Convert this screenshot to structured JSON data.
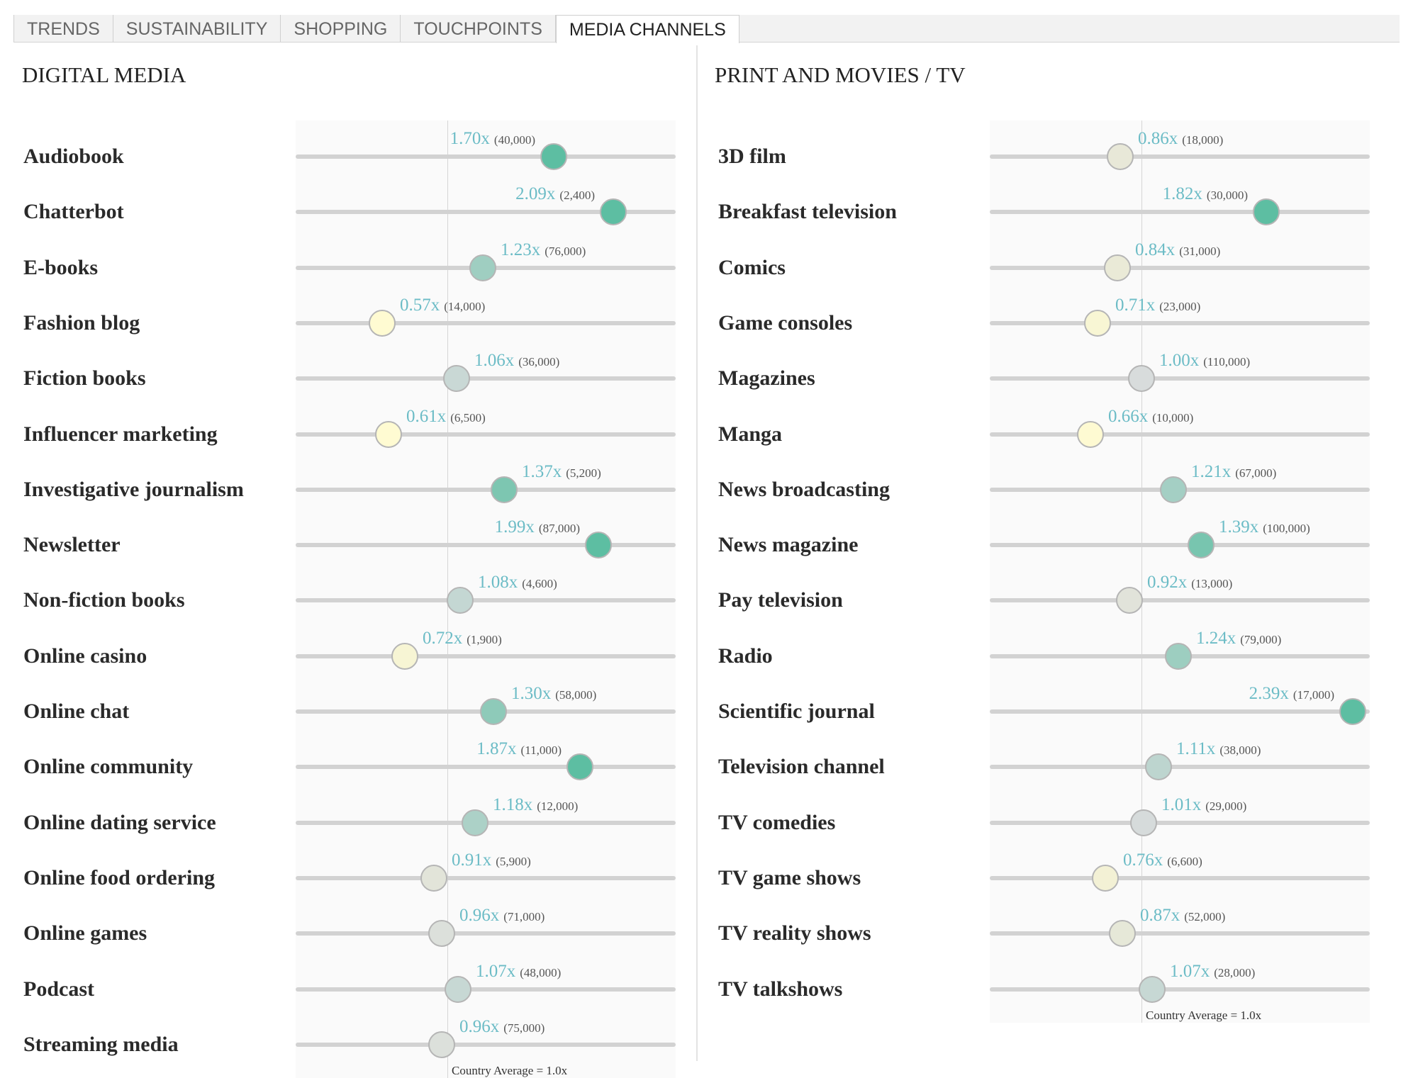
{
  "tabs": [
    {
      "label": "TRENDS",
      "active": false
    },
    {
      "label": "SUSTAINABILITY",
      "active": false
    },
    {
      "label": "SHOPPING",
      "active": false
    },
    {
      "label": "TOUCHPOINTS",
      "active": false
    },
    {
      "label": "MEDIA CHANNELS",
      "active": true
    }
  ],
  "scale": {
    "min": 0.0,
    "max": 2.5,
    "average": 1.0
  },
  "colors": {
    "low": "#fffbd2",
    "neutral": "#d8dcdc",
    "high": "#5dbea2",
    "index_text": "#6cbcc6"
  },
  "panels": [
    {
      "title": "DIGITAL MEDIA",
      "average_note": "Country Average = 1.0x",
      "items": [
        {
          "label": "Audiobook",
          "index": 1.7,
          "index_text": "1.70x",
          "count_text": "(40,000)"
        },
        {
          "label": "Chatterbot",
          "index": 2.09,
          "index_text": "2.09x",
          "count_text": "(2,400)"
        },
        {
          "label": "E-books",
          "index": 1.23,
          "index_text": "1.23x",
          "count_text": "(76,000)"
        },
        {
          "label": "Fashion blog",
          "index": 0.57,
          "index_text": "0.57x",
          "count_text": "(14,000)"
        },
        {
          "label": "Fiction books",
          "index": 1.06,
          "index_text": "1.06x",
          "count_text": "(36,000)"
        },
        {
          "label": "Influencer marketing",
          "index": 0.61,
          "index_text": "0.61x",
          "count_text": "(6,500)"
        },
        {
          "label": "Investigative journalism",
          "index": 1.37,
          "index_text": "1.37x",
          "count_text": "(5,200)"
        },
        {
          "label": "Newsletter",
          "index": 1.99,
          "index_text": "1.99x",
          "count_text": "(87,000)"
        },
        {
          "label": "Non-fiction books",
          "index": 1.08,
          "index_text": "1.08x",
          "count_text": "(4,600)"
        },
        {
          "label": "Online casino",
          "index": 0.72,
          "index_text": "0.72x",
          "count_text": "(1,900)"
        },
        {
          "label": "Online chat",
          "index": 1.3,
          "index_text": "1.30x",
          "count_text": "(58,000)"
        },
        {
          "label": "Online community",
          "index": 1.87,
          "index_text": "1.87x",
          "count_text": "(11,000)"
        },
        {
          "label": "Online dating service",
          "index": 1.18,
          "index_text": "1.18x",
          "count_text": "(12,000)"
        },
        {
          "label": "Online food ordering",
          "index": 0.91,
          "index_text": "0.91x",
          "count_text": "(5,900)"
        },
        {
          "label": "Online games",
          "index": 0.96,
          "index_text": "0.96x",
          "count_text": "(71,000)"
        },
        {
          "label": "Podcast",
          "index": 1.07,
          "index_text": "1.07x",
          "count_text": "(48,000)"
        },
        {
          "label": "Streaming media",
          "index": 0.96,
          "index_text": "0.96x",
          "count_text": "(75,000)"
        }
      ]
    },
    {
      "title": "PRINT AND MOVIES / TV",
      "average_note": "Country Average = 1.0x",
      "items": [
        {
          "label": "3D film",
          "index": 0.86,
          "index_text": "0.86x",
          "count_text": "(18,000)"
        },
        {
          "label": "Breakfast television",
          "index": 1.82,
          "index_text": "1.82x",
          "count_text": "(30,000)"
        },
        {
          "label": "Comics",
          "index": 0.84,
          "index_text": "0.84x",
          "count_text": "(31,000)"
        },
        {
          "label": "Game consoles",
          "index": 0.71,
          "index_text": "0.71x",
          "count_text": "(23,000)"
        },
        {
          "label": "Magazines",
          "index": 1.0,
          "index_text": "1.00x",
          "count_text": "(110,000)"
        },
        {
          "label": "Manga",
          "index": 0.66,
          "index_text": "0.66x",
          "count_text": "(10,000)"
        },
        {
          "label": "News broadcasting",
          "index": 1.21,
          "index_text": "1.21x",
          "count_text": "(67,000)"
        },
        {
          "label": "News magazine",
          "index": 1.39,
          "index_text": "1.39x",
          "count_text": "(100,000)"
        },
        {
          "label": "Pay television",
          "index": 0.92,
          "index_text": "0.92x",
          "count_text": "(13,000)"
        },
        {
          "label": "Radio",
          "index": 1.24,
          "index_text": "1.24x",
          "count_text": "(79,000)"
        },
        {
          "label": "Scientific journal",
          "index": 2.39,
          "index_text": "2.39x",
          "count_text": "(17,000)"
        },
        {
          "label": "Television channel",
          "index": 1.11,
          "index_text": "1.11x",
          "count_text": "(38,000)"
        },
        {
          "label": "TV comedies",
          "index": 1.01,
          "index_text": "1.01x",
          "count_text": "(29,000)"
        },
        {
          "label": "TV game shows",
          "index": 0.76,
          "index_text": "0.76x",
          "count_text": "(6,600)"
        },
        {
          "label": "TV reality shows",
          "index": 0.87,
          "index_text": "0.87x",
          "count_text": "(52,000)"
        },
        {
          "label": "TV talkshows",
          "index": 1.07,
          "index_text": "1.07x",
          "count_text": "(28,000)"
        }
      ]
    }
  ]
}
